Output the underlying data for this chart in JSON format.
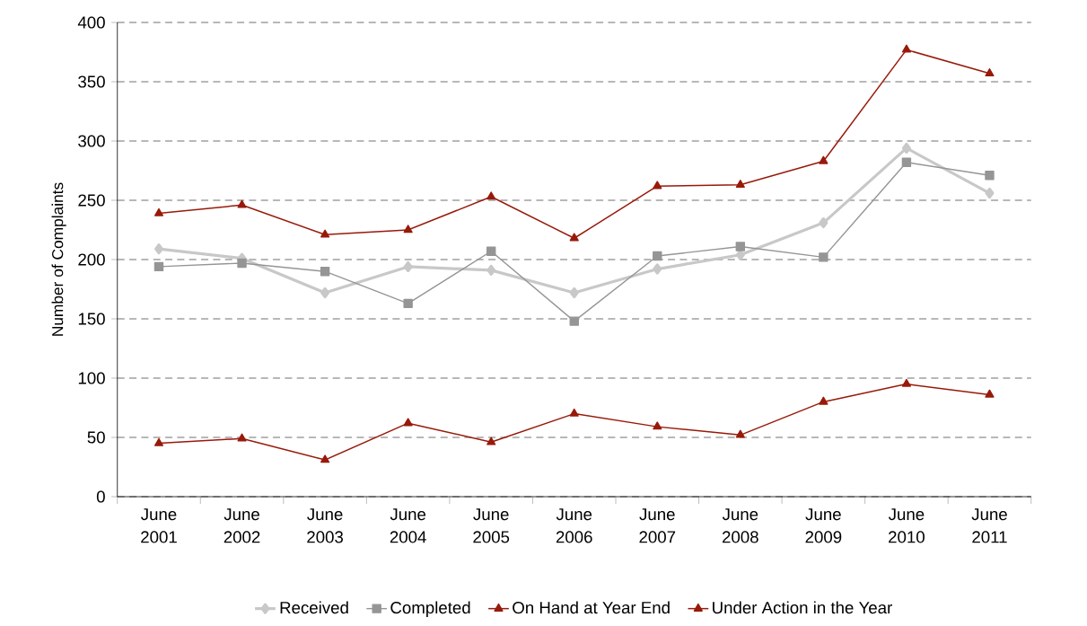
{
  "chart_data": {
    "type": "line",
    "ylabel": "Number of Complaints",
    "categories": [
      "June 2001",
      "June 2002",
      "June 2003",
      "June 2004",
      "June 2005",
      "June 2006",
      "June 2007",
      "June 2008",
      "June 2009",
      "June 2010",
      "June 2011"
    ],
    "ylim": [
      0,
      400
    ],
    "yticks": [
      0,
      50,
      100,
      150,
      200,
      250,
      300,
      350,
      400
    ],
    "grid": "y",
    "legend": "bottom",
    "series": [
      {
        "name": "Received",
        "color": "#c8c8c8",
        "marker": "diamond",
        "values": [
          209,
          201,
          172,
          194,
          191,
          172,
          192,
          204,
          231,
          294,
          256
        ]
      },
      {
        "name": "Completed",
        "color": "#959595",
        "marker": "square",
        "values": [
          194,
          197,
          190,
          163,
          207,
          148,
          203,
          211,
          202,
          282,
          271
        ]
      },
      {
        "name": "On Hand at Year End",
        "color": "#981a0a",
        "marker": "triangle",
        "values": [
          45,
          49,
          31,
          62,
          46,
          70,
          59,
          52,
          80,
          95,
          86
        ]
      },
      {
        "name": "Under Action in the Year",
        "color": "#981a0a",
        "marker": "triangle",
        "values": [
          239,
          246,
          221,
          225,
          253,
          218,
          262,
          263,
          283,
          377,
          357
        ]
      }
    ]
  }
}
